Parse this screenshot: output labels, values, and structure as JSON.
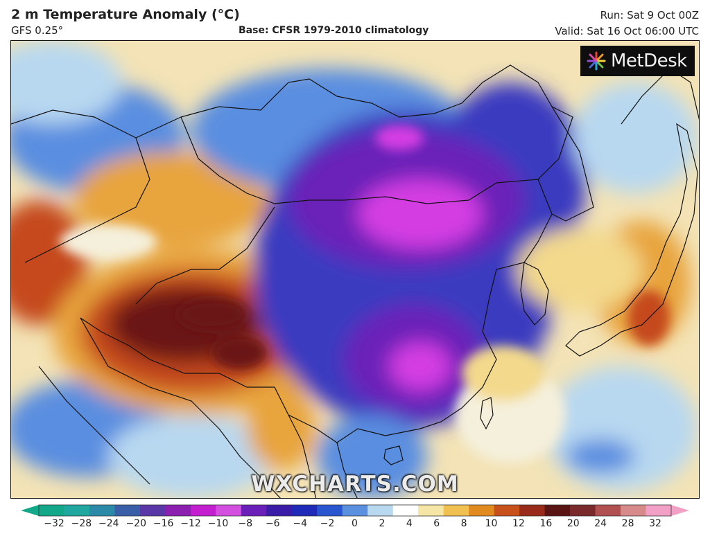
{
  "header": {
    "title": "2 m Temperature Anomaly (°C)",
    "model": "GFS 0.25°",
    "base": "Base: CFSR 1979-2010 climatology",
    "run": "Run: Sat 9 Oct 00Z",
    "valid": "Valid: Sat 16 Oct 06:00 UTC"
  },
  "logo": {
    "text": "MetDesk",
    "icon": "metdesk-burst-icon"
  },
  "watermark": "WXCHARTS.COM",
  "colorbar": {
    "tick_labels": [
      "−32",
      "−28",
      "−24",
      "−20",
      "−16",
      "−12",
      "−10",
      "−8",
      "−6",
      "−4",
      "−2",
      "0",
      "2",
      "4",
      "6",
      "8",
      "10",
      "12",
      "16",
      "20",
      "24",
      "28",
      "32"
    ],
    "unit": "°C",
    "colors": {
      "min_arrow": "#13a88a",
      "max_arrow": "#f2a0c6",
      "stops": [
        "#13a88a",
        "#1fa7a0",
        "#2a8aa7",
        "#3a5fa8",
        "#5a37a6",
        "#8a1fb0",
        "#c31fd0",
        "#d24fe0",
        "#6a1fb8",
        "#3a1ca8",
        "#1f2ab8",
        "#2a55d0",
        "#5a90e0",
        "#b8d8f0",
        "#ffffff",
        "#f5e6a6",
        "#f0c050",
        "#e08a20",
        "#c8501a",
        "#9a2a1a",
        "#5a1414",
        "#7a2a2a",
        "#b05050",
        "#d88a8a",
        "#f2a0c6"
      ]
    }
  },
  "map": {
    "region": "East Asia",
    "colors": {
      "background": "#f3e3b6",
      "extreme_cold": "#d43ee2",
      "strong_cold": "#6a22b8",
      "cold": "#3a3ac0",
      "cool": "#5a8ee0",
      "slight_cool": "#b8d8f0",
      "neutral": "#f5f0dc",
      "slight_warm": "#f3d98c",
      "warm": "#e8a43c",
      "strong_warm": "#c5481c",
      "extreme_warm": "#6a1616",
      "borders": "#111111"
    }
  }
}
